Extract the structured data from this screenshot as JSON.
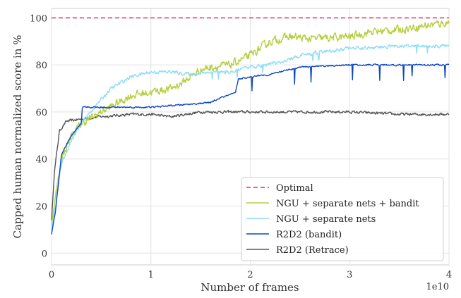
{
  "chart_data": {
    "type": "line",
    "xlabel": "Number of  frames",
    "ylabel": "Capped human normalized score in %",
    "x_multiplier_label": "1e10",
    "xlim": [
      0,
      4
    ],
    "ylim": [
      -5,
      104
    ],
    "x_ticks": [
      "0",
      "1",
      "2",
      "3",
      "4"
    ],
    "y_ticks": [
      "0",
      "20",
      "40",
      "60",
      "80",
      "100"
    ],
    "x_tick_values": [
      0,
      1,
      2,
      3,
      4
    ],
    "y_tick_values": [
      0,
      20,
      40,
      60,
      80,
      100
    ],
    "grid": true,
    "legend_position": "bottom-right",
    "series": [
      {
        "name": "Optimal",
        "color": "#d6336c",
        "style": "dashed",
        "x": [
          0,
          4
        ],
        "y": [
          100,
          100
        ]
      },
      {
        "name": "NGU + separate nets + bandit",
        "color": "#b5cf3d",
        "style": "solid",
        "noise": 2.6,
        "x": [
          0,
          0.04,
          0.1,
          0.2,
          0.3,
          0.5,
          0.8,
          1.2,
          1.3,
          1.5,
          1.6,
          1.8,
          2.0,
          2.2,
          2.4,
          2.6,
          3.0,
          3.2,
          3.5,
          3.8,
          4.0
        ],
        "y": [
          12,
          24,
          40,
          50,
          55,
          60,
          67,
          70,
          72,
          78,
          79,
          80,
          84,
          90,
          92,
          91,
          92,
          94,
          95,
          97,
          98
        ]
      },
      {
        "name": "NGU + separate nets",
        "color": "#8fdcf8",
        "style": "solid",
        "noise": 1.2,
        "x": [
          0,
          0.04,
          0.1,
          0.2,
          0.3,
          0.45,
          0.6,
          0.8,
          1.0,
          1.2,
          1.4,
          1.6,
          1.8,
          2.0,
          2.3,
          2.5,
          2.8,
          3.0,
          3.5,
          4.0
        ],
        "y": [
          10,
          20,
          38,
          48,
          55,
          63,
          70,
          75,
          77,
          77,
          76,
          77,
          77,
          79,
          81,
          84,
          86,
          87,
          88,
          88
        ]
      },
      {
        "name": "R2D2 (bandit)",
        "color": "#0d47c4",
        "style": "solid",
        "noise": 0.5,
        "x": [
          0,
          0.04,
          0.1,
          0.2,
          0.3,
          0.31,
          0.5,
          1.0,
          1.3,
          1.6,
          1.7,
          1.85,
          1.88,
          2.0,
          2.2,
          2.4,
          2.5,
          3.0,
          3.5,
          4.0
        ],
        "y": [
          8,
          18,
          42,
          50,
          55,
          62,
          62,
          62,
          63,
          64,
          66,
          68,
          74,
          75,
          76,
          78,
          79,
          80,
          80,
          80
        ]
      },
      {
        "name": "R2D2 (Retrace)",
        "color": "#555555",
        "style": "solid",
        "noise": 0.9,
        "x": [
          0,
          0.03,
          0.08,
          0.15,
          0.3,
          0.5,
          0.8,
          1.0,
          1.2,
          1.5,
          2.0,
          2.5,
          3.0,
          3.5,
          4.0
        ],
        "y": [
          14,
          35,
          52,
          56,
          57,
          58,
          59,
          59,
          58,
          60,
          60,
          60,
          60,
          59,
          59
        ]
      }
    ]
  }
}
